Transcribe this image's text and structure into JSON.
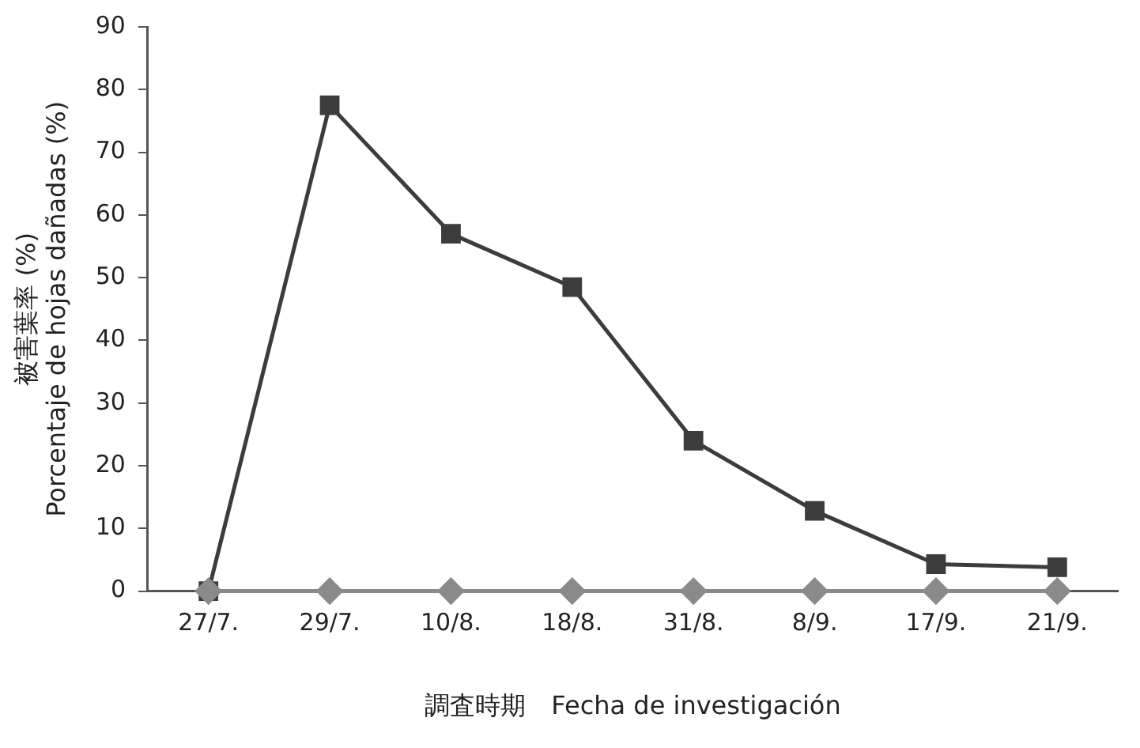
{
  "chart_data": {
    "type": "line",
    "xlabel": "調査時期　Fecha de investigación",
    "ylabel": "被害葉率 (%)\nPorcentaje de hojas dañadas (%)",
    "categories": [
      "27/7.",
      "29/7.",
      "10/8.",
      "18/8.",
      "31/8.",
      "8/9.",
      "17/9.",
      "21/9."
    ],
    "series": [
      {
        "color": "#3c3c3c",
        "marker": "square",
        "values": [
          0,
          77.5,
          57,
          48.5,
          24,
          12.8,
          4.3,
          3.8
        ]
      },
      {
        "color": "#8a8a8a",
        "marker": "diamond",
        "values": [
          0,
          0,
          0,
          0,
          0,
          0,
          0,
          0
        ]
      }
    ],
    "ylim": [
      0,
      90
    ],
    "yticks": [
      0,
      10,
      20,
      30,
      40,
      50,
      60,
      70,
      80,
      90
    ],
    "grid": false,
    "legend": false
  }
}
